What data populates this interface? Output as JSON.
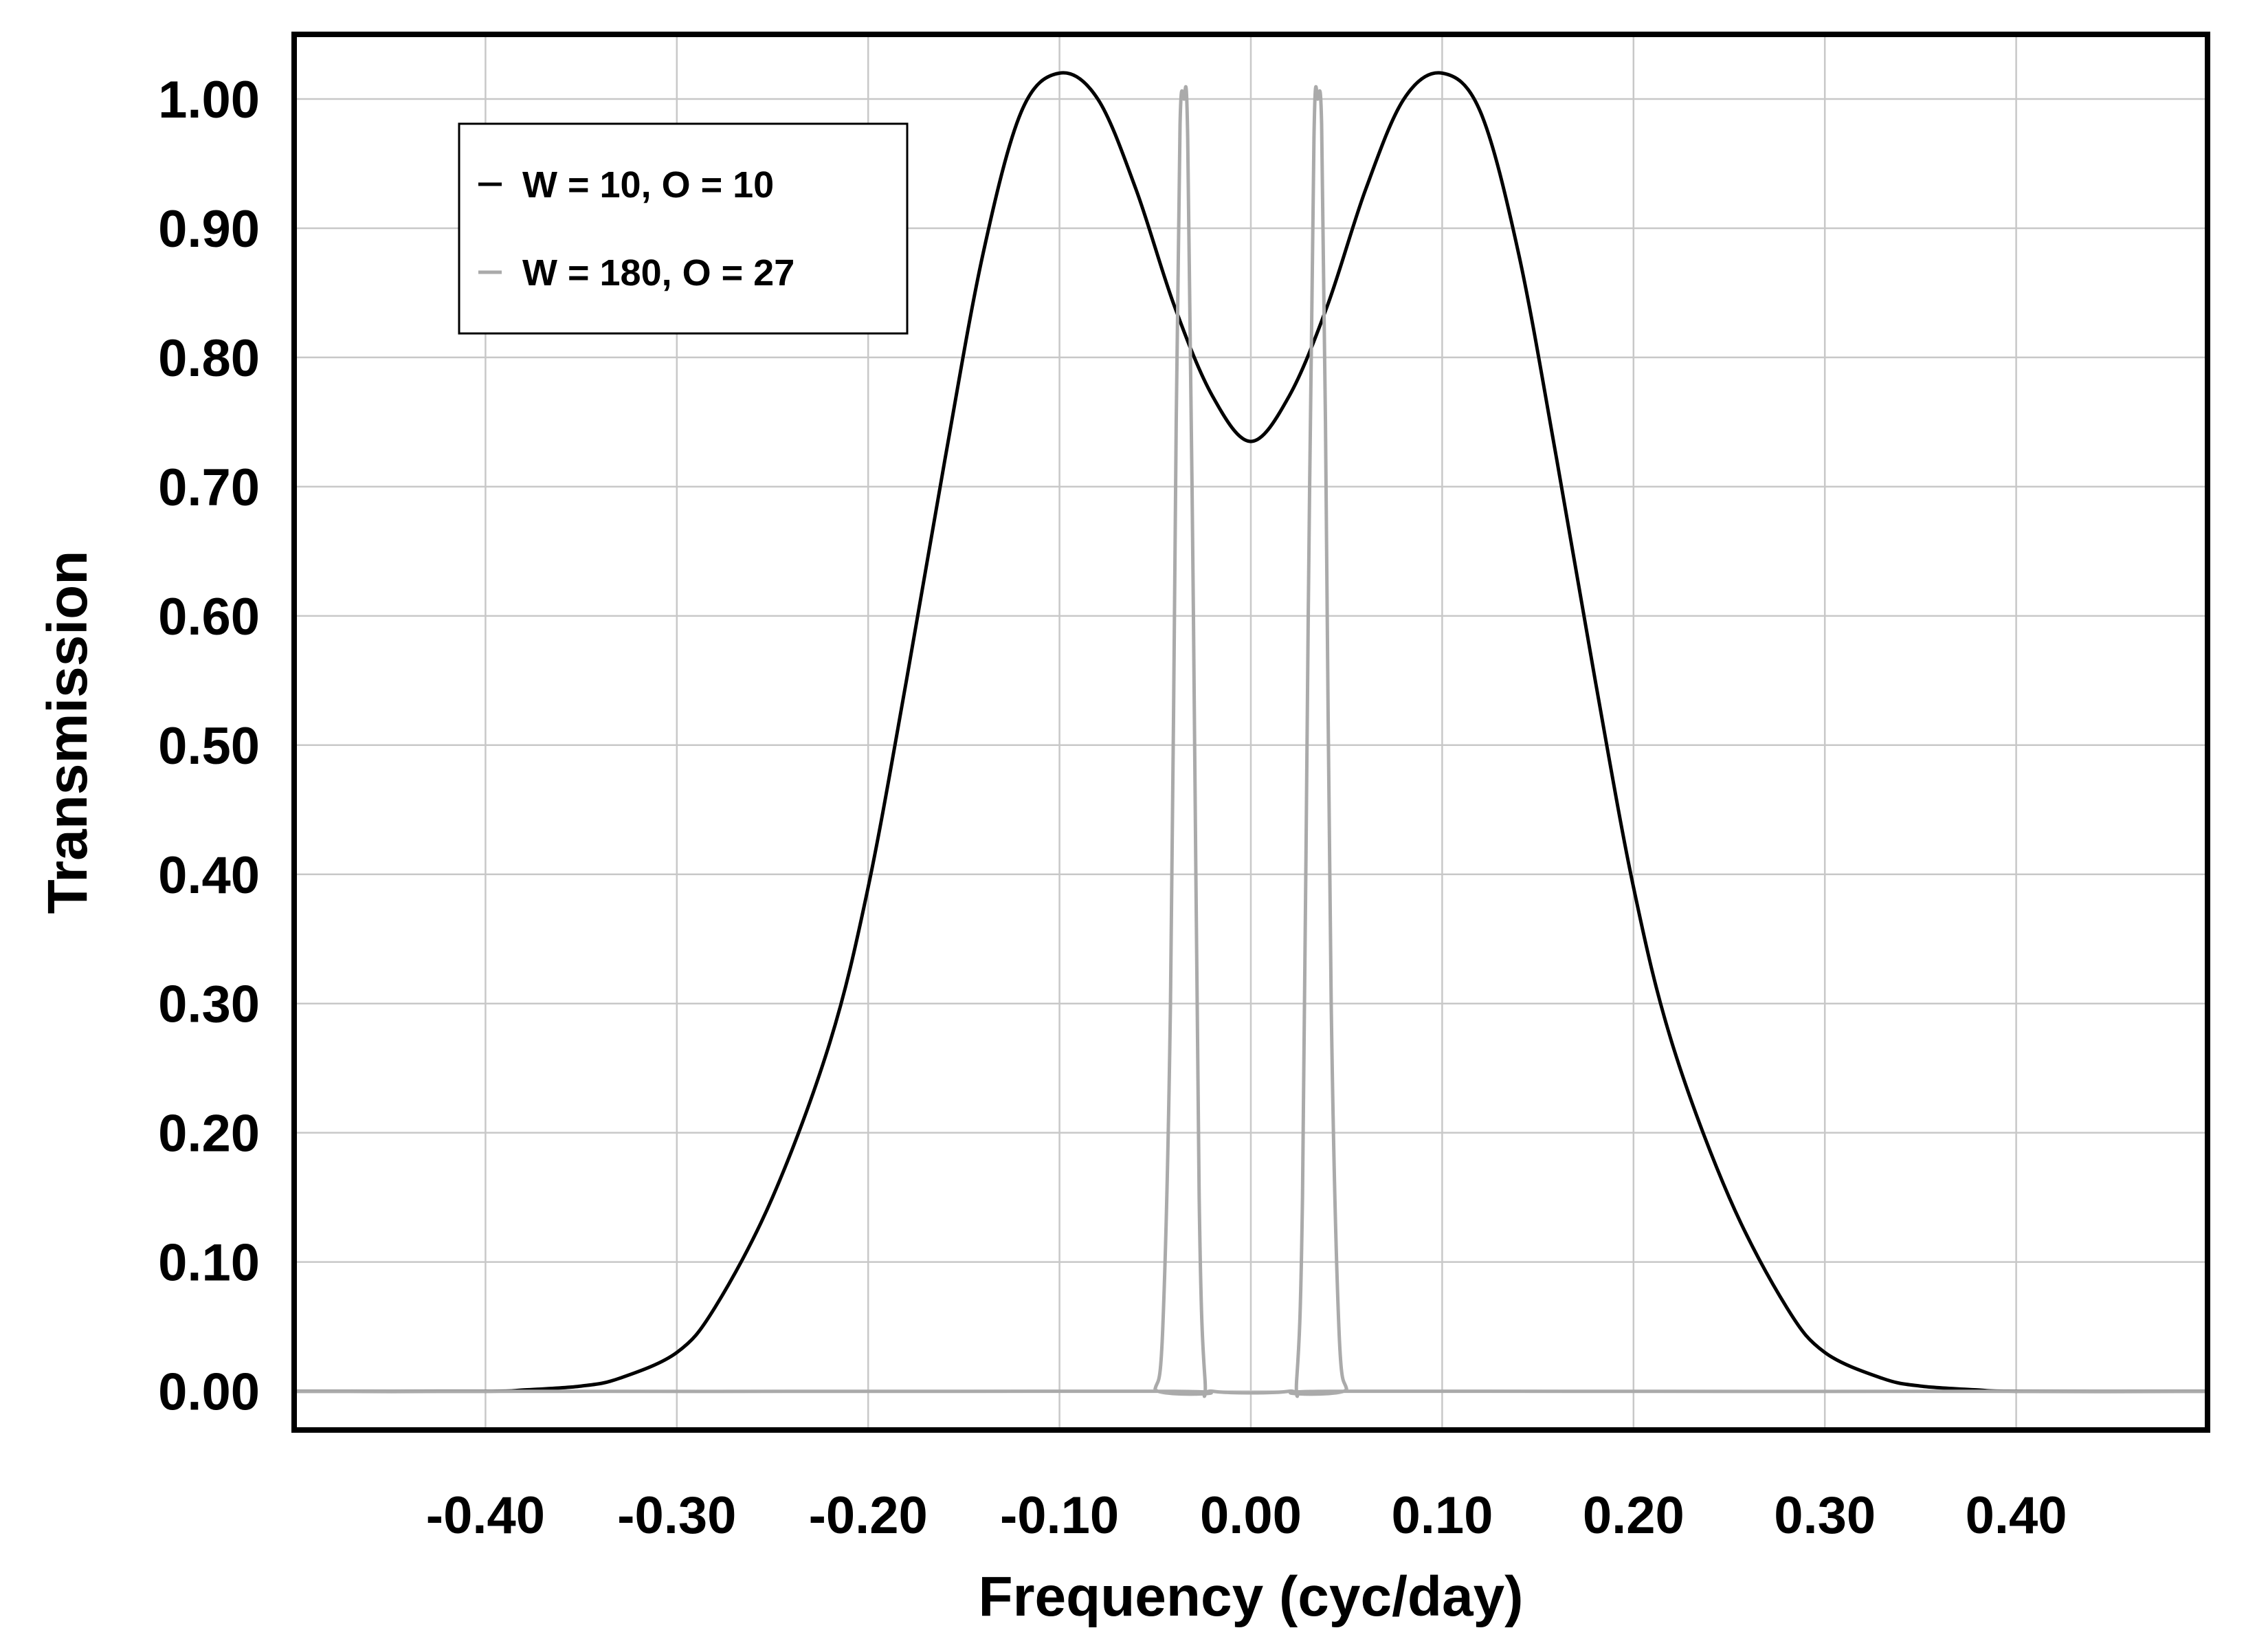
{
  "chart_data": {
    "type": "line",
    "title": "",
    "xlabel": "Frequency (cyc/day)",
    "ylabel": "Transmission",
    "xlim": [
      -0.5,
      0.5
    ],
    "ylim": [
      -0.03,
      1.05
    ],
    "x_ticks": [
      -0.4,
      -0.3,
      -0.2,
      -0.1,
      0.0,
      0.1,
      0.2,
      0.3,
      0.4
    ],
    "x_tick_labels": [
      "-0.40",
      "-0.30",
      "-0.20",
      "-0.10",
      "0.00",
      "0.10",
      "0.20",
      "0.30",
      "0.40"
    ],
    "y_ticks": [
      0.0,
      0.1,
      0.2,
      0.3,
      0.4,
      0.5,
      0.6,
      0.7,
      0.8,
      0.9,
      1.0
    ],
    "y_tick_labels": [
      "0.00",
      "0.10",
      "0.20",
      "0.30",
      "0.40",
      "0.50",
      "0.60",
      "0.70",
      "0.80",
      "0.90",
      "1.00"
    ],
    "grid": true,
    "legend_position": "top-left",
    "series": [
      {
        "name": "W = 10, O = 10",
        "color": "#000000",
        "x": [
          -0.5,
          -0.4,
          -0.38,
          -0.35,
          -0.33,
          -0.3,
          -0.28,
          -0.25,
          -0.22,
          -0.2,
          -0.18,
          -0.16,
          -0.14,
          -0.12,
          -0.1,
          -0.08,
          -0.06,
          -0.04,
          -0.02,
          0.0,
          0.02,
          0.04,
          0.06,
          0.08,
          0.1,
          0.12,
          0.14,
          0.16,
          0.18,
          0.2,
          0.22,
          0.25,
          0.28,
          0.3,
          0.33,
          0.35,
          0.38,
          0.4,
          0.5
        ],
        "y": [
          0.0,
          0.0,
          0.001,
          0.004,
          0.01,
          0.03,
          0.065,
          0.15,
          0.27,
          0.39,
          0.55,
          0.72,
          0.88,
          0.99,
          1.02,
          1.0,
          0.93,
          0.84,
          0.77,
          0.735,
          0.77,
          0.84,
          0.93,
          1.0,
          1.02,
          0.99,
          0.88,
          0.72,
          0.55,
          0.39,
          0.27,
          0.15,
          0.065,
          0.03,
          0.01,
          0.004,
          0.001,
          0.0,
          0.0
        ]
      },
      {
        "name": "W = 180, O = 27",
        "color": "#aaaaaa",
        "x": [
          -0.5,
          -0.055,
          -0.05,
          -0.046,
          -0.042,
          -0.039,
          -0.037,
          -0.035,
          -0.033,
          -0.03,
          -0.027,
          -0.024,
          -0.02,
          0.02,
          0.024,
          0.027,
          0.03,
          0.033,
          0.035,
          0.037,
          0.039,
          0.042,
          0.046,
          0.05,
          0.055,
          0.5
        ],
        "y": [
          0.0,
          0.0,
          0.002,
          0.05,
          0.3,
          0.75,
          0.98,
          1.0,
          0.97,
          0.6,
          0.15,
          0.01,
          0.0,
          0.0,
          0.01,
          0.15,
          0.6,
          0.97,
          1.0,
          0.98,
          0.75,
          0.3,
          0.05,
          0.002,
          0.0,
          0.0
        ]
      }
    ]
  }
}
